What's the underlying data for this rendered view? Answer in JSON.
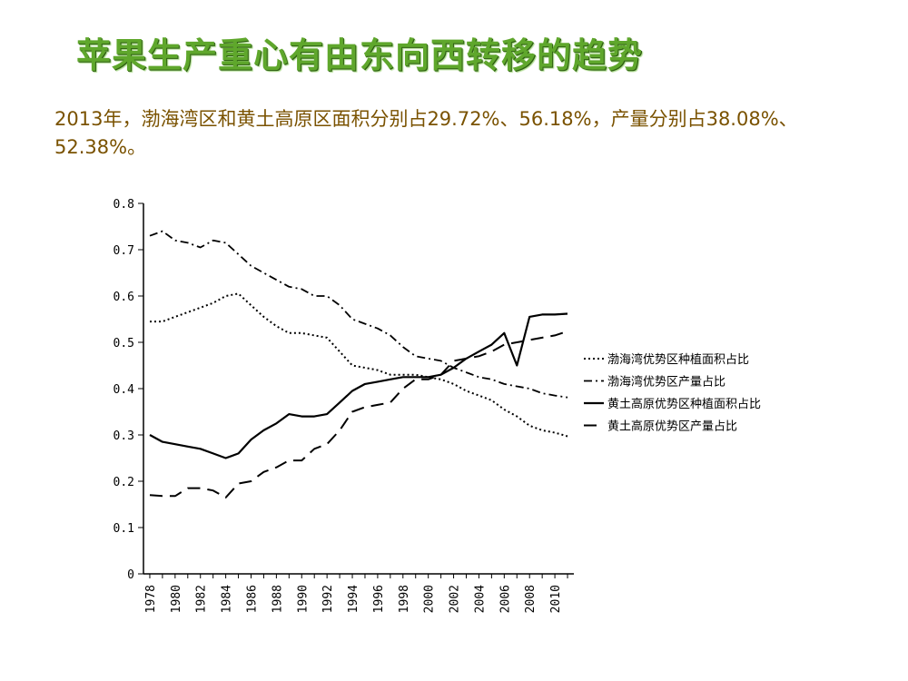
{
  "slide": {
    "title": "苹果生产重心有由东向西转移的趋势",
    "summary": "2013年，渤海湾区和黄土高原区面积分别占29.72%、56.18%，产量分别占38.08%、52.38%。"
  },
  "colors": {
    "title": "#5fa72c",
    "summary": "#7a5200",
    "lines": "#000000"
  },
  "chart_data": {
    "type": "line",
    "title": "",
    "xlabel": "",
    "ylabel": "",
    "ylim": [
      0,
      0.8
    ],
    "yticks": [
      "0",
      "0.1",
      "0.2",
      "0.3",
      "0.4",
      "0.5",
      "0.6",
      "0.7",
      "0.8"
    ],
    "xticks": [
      "1978",
      "1980",
      "1982",
      "1984",
      "1986",
      "1988",
      "1990",
      "1992",
      "1994",
      "1996",
      "1998",
      "2000",
      "2002",
      "2004",
      "2006",
      "2008",
      "2010"
    ],
    "x": [
      1978,
      1979,
      1980,
      1981,
      1982,
      1983,
      1984,
      1985,
      1986,
      1987,
      1988,
      1989,
      1990,
      1991,
      1992,
      1993,
      1994,
      1995,
      1996,
      1997,
      1998,
      1999,
      2000,
      2001,
      2002,
      2003,
      2004,
      2005,
      2006,
      2007,
      2008,
      2009,
      2010,
      2011
    ],
    "grid": false,
    "legend_position": "right",
    "series": [
      {
        "name": "渤海湾优势区种植面积占比",
        "style": "dotted",
        "values": [
          0.545,
          0.545,
          0.555,
          0.565,
          0.575,
          0.585,
          0.6,
          0.605,
          0.58,
          0.555,
          0.535,
          0.52,
          0.52,
          0.515,
          0.51,
          0.48,
          0.45,
          0.445,
          0.44,
          0.43,
          0.43,
          0.43,
          0.425,
          0.42,
          0.41,
          0.395,
          0.385,
          0.375,
          0.355,
          0.34,
          0.32,
          0.31,
          0.305,
          0.297
        ]
      },
      {
        "name": "渤海湾优势区产量占比",
        "style": "dashdot",
        "values": [
          0.73,
          0.74,
          0.72,
          0.715,
          0.705,
          0.72,
          0.715,
          0.69,
          0.665,
          0.65,
          0.635,
          0.62,
          0.615,
          0.6,
          0.6,
          0.58,
          0.55,
          0.54,
          0.53,
          0.515,
          0.49,
          0.47,
          0.465,
          0.46,
          0.445,
          0.435,
          0.425,
          0.42,
          0.41,
          0.405,
          0.4,
          0.39,
          0.385,
          0.381
        ]
      },
      {
        "name": "黄土高原优势区种植面积占比",
        "style": "solid",
        "values": [
          0.3,
          0.285,
          0.28,
          0.275,
          0.27,
          0.26,
          0.25,
          0.26,
          0.29,
          0.31,
          0.325,
          0.345,
          0.34,
          0.34,
          0.345,
          0.37,
          0.395,
          0.41,
          0.415,
          0.42,
          0.425,
          0.425,
          0.425,
          0.43,
          0.445,
          0.465,
          0.48,
          0.495,
          0.52,
          0.45,
          0.555,
          0.56,
          0.56,
          0.5618
        ]
      },
      {
        "name": "黄土高原优势区产量占比",
        "style": "dashed",
        "values": [
          0.17,
          0.168,
          0.168,
          0.185,
          0.185,
          0.18,
          0.165,
          0.195,
          0.2,
          0.22,
          0.23,
          0.245,
          0.245,
          0.27,
          0.28,
          0.31,
          0.35,
          0.36,
          0.365,
          0.37,
          0.4,
          0.42,
          0.42,
          0.43,
          0.46,
          0.465,
          0.47,
          0.48,
          0.495,
          0.5,
          0.505,
          0.51,
          0.515,
          0.5238
        ]
      }
    ]
  }
}
